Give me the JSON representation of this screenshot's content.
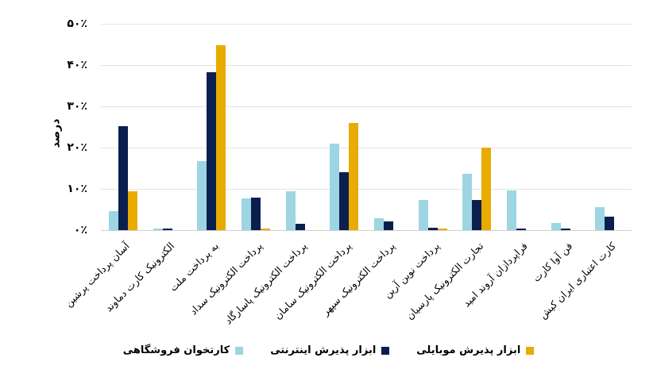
{
  "chart_data": {
    "type": "bar",
    "title": "",
    "xlabel": "",
    "ylabel": "درصد",
    "ylim": [
      0,
      50
    ],
    "yticks": [
      "۰٪",
      "۱۰٪",
      "۲۰٪",
      "۳۰٪",
      "۴۰٪",
      "۵۰٪"
    ],
    "grid": true,
    "legend_position": "bottom",
    "categories": [
      "آسان پرداخت پرشین",
      "الکترونیک کارت دماوند",
      "به پرداخت ملت",
      "پرداخت الکترونیک سداد",
      "پرداخت الکترونیک پاسارگاد",
      "پرداخت الکترونیک سامان",
      "پرداخت الکترونیک سپهر",
      "پرداخت نوین آرین",
      "تجارت الکترونیک پارسیان",
      "فراپردازان آروند امید",
      "فن آوا کارت",
      "کارت اعتباری ایران کیش"
    ],
    "series": [
      {
        "name": "کارتخوان فروشگاهی",
        "color": "#9dd5e3",
        "values": [
          4.6,
          0.3,
          16.7,
          7.7,
          9.4,
          21.0,
          2.9,
          7.3,
          13.7,
          9.6,
          1.7,
          5.6
        ]
      },
      {
        "name": "ابزار پذیرش اینترنتی",
        "color": "#0b1f4f",
        "values": [
          25.2,
          0.4,
          38.3,
          7.9,
          1.5,
          14.0,
          2.1,
          0.6,
          7.3,
          0.3,
          0.3,
          3.3
        ]
      },
      {
        "name": "ابزار پذیرش موبایلی",
        "color": "#e8ab00",
        "values": [
          9.4,
          0.0,
          44.8,
          0.3,
          0.0,
          26.0,
          0.0,
          0.3,
          20.0,
          0.0,
          0.0,
          0.0
        ]
      }
    ]
  },
  "legend": {
    "items": [
      {
        "label": "ابزار پذیرش موبایلی",
        "color": "#e8ab00"
      },
      {
        "label": "ابزار پذیرش اینترنتی",
        "color": "#0b1f4f"
      },
      {
        "label": "کارتخوان فروشگاهی",
        "color": "#9dd5e3"
      }
    ]
  }
}
